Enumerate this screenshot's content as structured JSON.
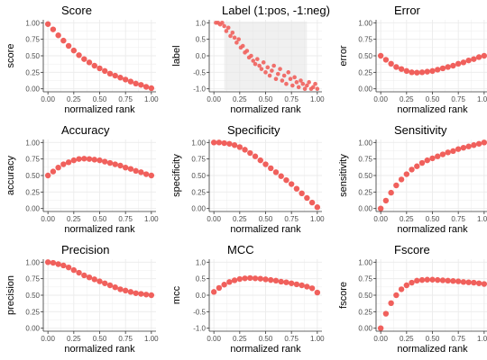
{
  "figure": {
    "panels": [
      {
        "id": "score",
        "title": "Score",
        "xlabel": "normalized rank",
        "ylabel": "score",
        "xticks": [
          "0.00",
          "0.25",
          "0.50",
          "0.75",
          "1.00"
        ],
        "yticks": [
          "0.00",
          "0.25",
          "0.50",
          "0.75",
          "1.00"
        ],
        "xlim": [
          0,
          1
        ],
        "ylim": [
          0,
          1
        ]
      },
      {
        "id": "label",
        "title": "Label (1:pos, -1:neg)",
        "xlabel": "normalized rank",
        "ylabel": "label",
        "xticks": [
          "0.00",
          "0.25",
          "0.50",
          "0.75",
          "1.00"
        ],
        "yticks": [
          "-1.0",
          "-0.5",
          "0.0",
          "0.5",
          "1.0"
        ],
        "xlim": [
          0,
          1
        ],
        "ylim": [
          -1,
          1
        ]
      },
      {
        "id": "error",
        "title": "Error",
        "xlabel": "normalized rank",
        "ylabel": "error",
        "xticks": [
          "0.00",
          "0.25",
          "0.50",
          "0.75",
          "1.00"
        ],
        "yticks": [
          "0.00",
          "0.25",
          "0.50",
          "0.75",
          "1.00"
        ],
        "xlim": [
          0,
          1
        ],
        "ylim": [
          0,
          1
        ]
      },
      {
        "id": "accuracy",
        "title": "Accuracy",
        "xlabel": "normalized rank",
        "ylabel": "accuracy",
        "xticks": [
          "0.00",
          "0.25",
          "0.50",
          "0.75",
          "1.00"
        ],
        "yticks": [
          "0.00",
          "0.25",
          "0.50",
          "0.75",
          "1.00"
        ],
        "xlim": [
          0,
          1
        ],
        "ylim": [
          0,
          1
        ]
      },
      {
        "id": "specificity",
        "title": "Specificity",
        "xlabel": "normalized rank",
        "ylabel": "specificity",
        "xticks": [
          "0.00",
          "0.25",
          "0.50",
          "0.75",
          "1.00"
        ],
        "yticks": [
          "0.00",
          "0.25",
          "0.50",
          "0.75",
          "1.00"
        ],
        "xlim": [
          0,
          1
        ],
        "ylim": [
          0,
          1
        ]
      },
      {
        "id": "sensitivity",
        "title": "Sensitivity",
        "xlabel": "normalized rank",
        "ylabel": "sensitivity",
        "xticks": [
          "0.00",
          "0.25",
          "0.50",
          "0.75",
          "1.00"
        ],
        "yticks": [
          "0.00",
          "0.25",
          "0.50",
          "0.75",
          "1.00"
        ],
        "xlim": [
          0,
          1
        ],
        "ylim": [
          0,
          1
        ]
      },
      {
        "id": "precision",
        "title": "Precision",
        "xlabel": "normalized rank",
        "ylabel": "precision",
        "xticks": [
          "0.00",
          "0.25",
          "0.50",
          "0.75",
          "1.00"
        ],
        "yticks": [
          "0.00",
          "0.25",
          "0.50",
          "0.75",
          "1.00"
        ],
        "xlim": [
          0,
          1
        ],
        "ylim": [
          0,
          1
        ]
      },
      {
        "id": "mcc",
        "title": "MCC",
        "xlabel": "normalized rank",
        "ylabel": "mcc",
        "xticks": [
          "0.00",
          "0.25",
          "0.50",
          "0.75",
          "1.00"
        ],
        "yticks": [
          "-1.0",
          "-0.5",
          "0.0",
          "0.5",
          "1.0"
        ],
        "xlim": [
          0,
          1
        ],
        "ylim": [
          -1,
          1
        ]
      },
      {
        "id": "fscore",
        "title": "Fscore",
        "xlabel": "normalized rank",
        "ylabel": "fscore",
        "xticks": [
          "0.00",
          "0.25",
          "0.50",
          "0.75",
          "1.00"
        ],
        "yticks": [
          "0.00",
          "0.25",
          "0.50",
          "0.75",
          "1.00"
        ],
        "xlim": [
          0,
          1
        ],
        "ylim": [
          0,
          1
        ]
      }
    ]
  },
  "colors": {
    "points": "#f0605c",
    "grid": "#ebebeb",
    "axis": "#333333",
    "tick_text": "#4d4d4d"
  },
  "chart_data": [
    {
      "type": "scatter",
      "title": "Score",
      "xlabel": "normalized rank",
      "ylabel": "score",
      "xlim": [
        0,
        1
      ],
      "ylim": [
        0,
        1
      ],
      "grid": true,
      "x": [
        0,
        0.05,
        0.1,
        0.15,
        0.2,
        0.25,
        0.3,
        0.35,
        0.4,
        0.45,
        0.5,
        0.55,
        0.6,
        0.65,
        0.7,
        0.75,
        0.8,
        0.85,
        0.9,
        0.95,
        1
      ],
      "y": [
        0.98,
        0.9,
        0.81,
        0.73,
        0.65,
        0.58,
        0.51,
        0.45,
        0.4,
        0.35,
        0.31,
        0.27,
        0.23,
        0.2,
        0.17,
        0.14,
        0.11,
        0.08,
        0.06,
        0.03,
        0.01
      ]
    },
    {
      "type": "scatter",
      "title": "Label (1:pos, -1:neg)",
      "xlabel": "normalized rank",
      "ylabel": "label",
      "xlim": [
        0,
        1
      ],
      "ylim": [
        -1,
        1
      ],
      "grid": true,
      "x": [
        0.02,
        0.04,
        0.06,
        0.08,
        0.1,
        0.12,
        0.14,
        0.16,
        0.18,
        0.2,
        0.22,
        0.24,
        0.26,
        0.28,
        0.3,
        0.32,
        0.34,
        0.36,
        0.38,
        0.4,
        0.42,
        0.44,
        0.46,
        0.48,
        0.5,
        0.52,
        0.54,
        0.56,
        0.58,
        0.6,
        0.62,
        0.64,
        0.66,
        0.68,
        0.7,
        0.72,
        0.74,
        0.76,
        0.78,
        0.8,
        0.82,
        0.84,
        0.86,
        0.88,
        0.9,
        0.92,
        0.94,
        0.96,
        0.98,
        1.0
      ],
      "y": [
        1.0,
        1.0,
        0.95,
        1.0,
        0.9,
        0.75,
        0.85,
        0.6,
        0.7,
        0.55,
        0.4,
        0.5,
        0.25,
        0.3,
        0.1,
        0.15,
        -0.05,
        0.0,
        -0.15,
        -0.25,
        -0.1,
        -0.3,
        -0.4,
        -0.2,
        -0.5,
        -0.35,
        -0.6,
        -0.45,
        -0.3,
        -0.7,
        -0.55,
        -0.4,
        -0.75,
        -0.6,
        -0.85,
        -0.5,
        -0.7,
        -0.9,
        -0.65,
        -0.8,
        -0.95,
        -0.75,
        -0.85,
        -1.0,
        -0.9,
        -0.8,
        -1.0,
        -0.95,
        -0.85,
        -1.0
      ]
    },
    {
      "type": "scatter",
      "title": "Error",
      "xlabel": "normalized rank",
      "ylabel": "error",
      "xlim": [
        0,
        1
      ],
      "ylim": [
        0,
        1
      ],
      "grid": true,
      "x": [
        0,
        0.05,
        0.1,
        0.15,
        0.2,
        0.25,
        0.3,
        0.35,
        0.4,
        0.45,
        0.5,
        0.55,
        0.6,
        0.65,
        0.7,
        0.75,
        0.8,
        0.85,
        0.9,
        0.95,
        1
      ],
      "y": [
        0.5,
        0.44,
        0.38,
        0.33,
        0.3,
        0.27,
        0.25,
        0.245,
        0.25,
        0.26,
        0.27,
        0.29,
        0.31,
        0.33,
        0.35,
        0.38,
        0.4,
        0.43,
        0.45,
        0.48,
        0.5
      ]
    },
    {
      "type": "scatter",
      "title": "Accuracy",
      "xlabel": "normalized rank",
      "ylabel": "accuracy",
      "xlim": [
        0,
        1
      ],
      "ylim": [
        0,
        1
      ],
      "grid": true,
      "x": [
        0,
        0.05,
        0.1,
        0.15,
        0.2,
        0.25,
        0.3,
        0.35,
        0.4,
        0.45,
        0.5,
        0.55,
        0.6,
        0.65,
        0.7,
        0.75,
        0.8,
        0.85,
        0.9,
        0.95,
        1
      ],
      "y": [
        0.5,
        0.56,
        0.62,
        0.67,
        0.7,
        0.73,
        0.75,
        0.755,
        0.75,
        0.74,
        0.73,
        0.71,
        0.69,
        0.67,
        0.65,
        0.62,
        0.6,
        0.57,
        0.55,
        0.52,
        0.5
      ]
    },
    {
      "type": "scatter",
      "title": "Specificity",
      "xlabel": "normalized rank",
      "ylabel": "specificity",
      "xlim": [
        0,
        1
      ],
      "ylim": [
        0,
        1
      ],
      "grid": true,
      "x": [
        0,
        0.05,
        0.1,
        0.15,
        0.2,
        0.25,
        0.3,
        0.35,
        0.4,
        0.45,
        0.5,
        0.55,
        0.6,
        0.65,
        0.7,
        0.75,
        0.8,
        0.85,
        0.9,
        0.95,
        1
      ],
      "y": [
        1.0,
        1.0,
        0.99,
        0.98,
        0.96,
        0.93,
        0.89,
        0.84,
        0.79,
        0.73,
        0.67,
        0.61,
        0.55,
        0.49,
        0.43,
        0.37,
        0.3,
        0.23,
        0.16,
        0.09,
        0.02
      ]
    },
    {
      "type": "scatter",
      "title": "Sensitivity",
      "xlabel": "normalized rank",
      "ylabel": "sensitivity",
      "xlim": [
        0,
        1
      ],
      "ylim": [
        0,
        1
      ],
      "grid": true,
      "x": [
        0,
        0.05,
        0.1,
        0.15,
        0.2,
        0.25,
        0.3,
        0.35,
        0.4,
        0.45,
        0.5,
        0.55,
        0.6,
        0.65,
        0.7,
        0.75,
        0.8,
        0.85,
        0.9,
        0.95,
        1
      ],
      "y": [
        0.0,
        0.12,
        0.24,
        0.35,
        0.44,
        0.52,
        0.59,
        0.64,
        0.69,
        0.73,
        0.76,
        0.79,
        0.82,
        0.85,
        0.87,
        0.9,
        0.92,
        0.94,
        0.96,
        0.98,
        1.0
      ]
    },
    {
      "type": "scatter",
      "title": "Precision",
      "xlabel": "normalized rank",
      "ylabel": "precision",
      "xlim": [
        0,
        1
      ],
      "ylim": [
        0,
        1
      ],
      "grid": true,
      "x": [
        0,
        0.05,
        0.1,
        0.15,
        0.2,
        0.25,
        0.3,
        0.35,
        0.4,
        0.45,
        0.5,
        0.55,
        0.6,
        0.65,
        0.7,
        0.75,
        0.8,
        0.85,
        0.9,
        0.95,
        1
      ],
      "y": [
        1.0,
        0.99,
        0.97,
        0.95,
        0.92,
        0.88,
        0.84,
        0.8,
        0.77,
        0.74,
        0.71,
        0.68,
        0.65,
        0.62,
        0.59,
        0.57,
        0.55,
        0.53,
        0.52,
        0.51,
        0.5
      ]
    },
    {
      "type": "scatter",
      "title": "MCC",
      "xlabel": "normalized rank",
      "ylabel": "mcc",
      "xlim": [
        0,
        1
      ],
      "ylim": [
        -1,
        1
      ],
      "grid": true,
      "x": [
        0,
        0.05,
        0.1,
        0.15,
        0.2,
        0.25,
        0.3,
        0.35,
        0.4,
        0.45,
        0.5,
        0.55,
        0.6,
        0.65,
        0.7,
        0.75,
        0.8,
        0.85,
        0.9,
        0.95,
        1
      ],
      "y": [
        0.1,
        0.22,
        0.32,
        0.4,
        0.45,
        0.49,
        0.51,
        0.52,
        0.51,
        0.5,
        0.48,
        0.46,
        0.44,
        0.41,
        0.39,
        0.36,
        0.33,
        0.3,
        0.26,
        0.21,
        0.08
      ]
    },
    {
      "type": "scatter",
      "title": "Fscore",
      "xlabel": "normalized rank",
      "ylabel": "fscore",
      "xlim": [
        0,
        1
      ],
      "ylim": [
        0,
        1
      ],
      "grid": true,
      "x": [
        0,
        0.05,
        0.1,
        0.15,
        0.2,
        0.25,
        0.3,
        0.35,
        0.4,
        0.45,
        0.5,
        0.55,
        0.6,
        0.65,
        0.7,
        0.75,
        0.8,
        0.85,
        0.9,
        0.95,
        1
      ],
      "y": [
        0.0,
        0.22,
        0.38,
        0.5,
        0.59,
        0.65,
        0.69,
        0.72,
        0.73,
        0.735,
        0.735,
        0.73,
        0.725,
        0.72,
        0.715,
        0.71,
        0.7,
        0.695,
        0.69,
        0.68,
        0.67
      ]
    }
  ]
}
